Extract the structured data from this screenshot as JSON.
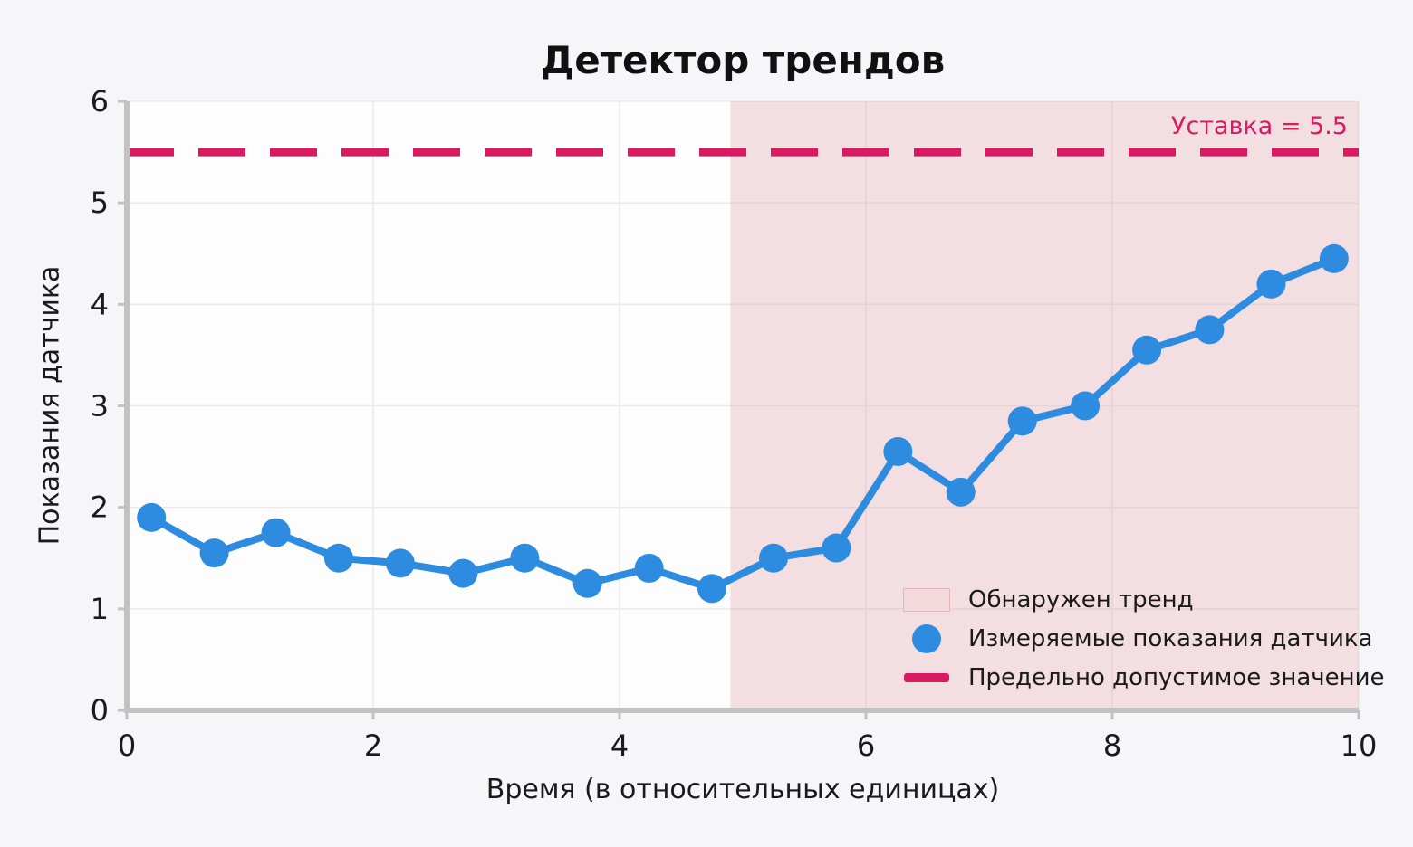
{
  "chart_data": {
    "type": "line",
    "title": "Детектор трендов",
    "xlabel": "Время (в относительных единицах)",
    "ylabel": "Показания датчика",
    "xlim": [
      0,
      10
    ],
    "ylim": [
      0,
      6
    ],
    "x_ticks": [
      0,
      2,
      4,
      6,
      8,
      10
    ],
    "y_ticks": [
      0,
      1,
      2,
      3,
      4,
      5,
      6
    ],
    "grid": true,
    "series": [
      {
        "name": "Измеряемые показания датчика",
        "color": "#2e8ce0",
        "marker": "circle",
        "x": [
          0.2,
          0.71,
          1.21,
          1.72,
          2.22,
          2.73,
          3.23,
          3.74,
          4.24,
          4.75,
          5.25,
          5.76,
          6.26,
          6.77,
          7.27,
          7.78,
          8.28,
          8.79,
          9.29,
          9.8
        ],
        "y": [
          1.9,
          1.55,
          1.75,
          1.5,
          1.45,
          1.35,
          1.5,
          1.25,
          1.4,
          1.2,
          1.5,
          1.6,
          2.55,
          2.15,
          2.85,
          3.0,
          3.55,
          3.75,
          4.2,
          4.45
        ]
      }
    ],
    "threshold": {
      "value": 5.5,
      "label": "Уставка = 5.5",
      "color": "#d81b60"
    },
    "trend_region": {
      "x_start": 4.9,
      "x_end": 10,
      "fill": "#dfa0aa",
      "opacity": 0.32
    },
    "legend": {
      "position": "lower right",
      "entries": [
        {
          "label": "Обнаружен тренд"
        },
        {
          "label": "Измеряемые показания датчика"
        },
        {
          "label": "Предельно допустимое значение"
        }
      ]
    },
    "colors": {
      "figure_bg": "#f6f6f8",
      "plot_bg": "#fdfdfd",
      "grid": "#ebebee",
      "axis": "#c2c2c2",
      "tick_text": "#1a1a1a"
    }
  }
}
